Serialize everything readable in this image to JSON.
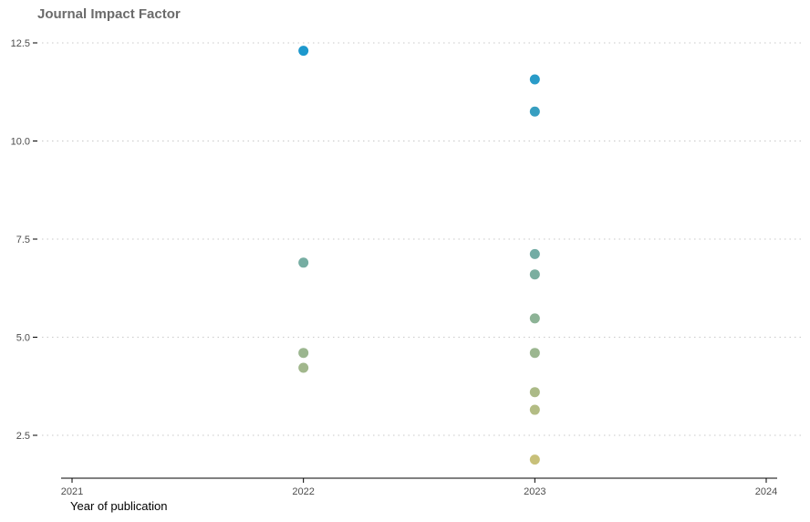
{
  "chart_data": {
    "type": "scatter",
    "title": "Journal Impact Factor",
    "xlabel": "Year of publication",
    "ylabel": "",
    "xlim": [
      2021,
      2024
    ],
    "ylim": [
      1.5,
      12.8
    ],
    "x_ticks": [
      2021,
      2022,
      2023,
      2024
    ],
    "y_ticks": [
      2.5,
      5.0,
      7.5,
      10.0,
      12.5
    ],
    "y_tick_labels": [
      "2.5",
      "5.0",
      "7.5",
      "10.0",
      "12.5"
    ],
    "grid": "horizontal dotted",
    "legend": "none",
    "color_scale": {
      "low": "#c3bb6e",
      "high": "#0a8fc9"
    },
    "points": [
      {
        "x": 2022,
        "y": 12.3
      },
      {
        "x": 2022,
        "y": 6.9
      },
      {
        "x": 2022,
        "y": 4.6
      },
      {
        "x": 2022,
        "y": 4.22
      },
      {
        "x": 2023,
        "y": 11.57
      },
      {
        "x": 2023,
        "y": 10.75
      },
      {
        "x": 2023,
        "y": 7.12
      },
      {
        "x": 2023,
        "y": 6.6
      },
      {
        "x": 2023,
        "y": 5.48
      },
      {
        "x": 2023,
        "y": 4.6
      },
      {
        "x": 2023,
        "y": 3.6
      },
      {
        "x": 2023,
        "y": 3.15
      },
      {
        "x": 2023,
        "y": 1.88
      }
    ]
  }
}
